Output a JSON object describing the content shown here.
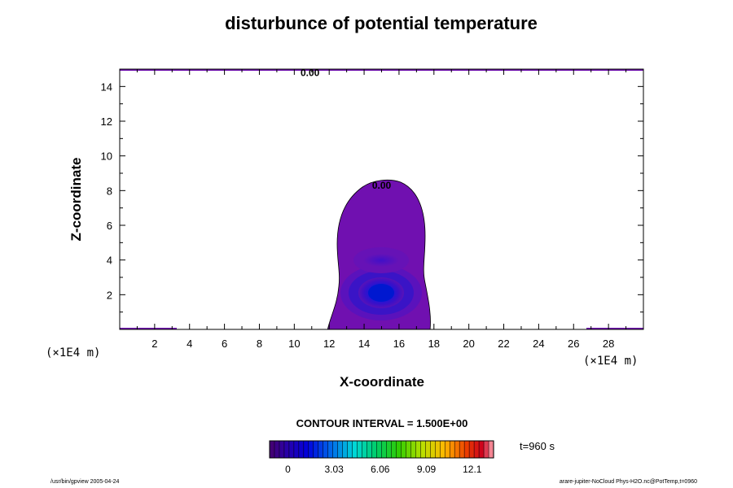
{
  "chart_data": {
    "type": "contour",
    "title": "disturbunce of potential temperature",
    "xlabel": "X-coordinate",
    "ylabel": "Z-coordinate",
    "x_scale_label": "(×1E4 m)",
    "y_scale_label": "(×1E4 m)",
    "xlim": [
      0,
      30
    ],
    "ylim": [
      0,
      15
    ],
    "x_ticks": [
      2,
      4,
      6,
      8,
      10,
      12,
      14,
      16,
      18,
      20,
      22,
      24,
      26,
      28
    ],
    "y_ticks": [
      2,
      4,
      6,
      8,
      10,
      12,
      14
    ],
    "contour_labels": [
      {
        "text": "0.00",
        "x": 10.9,
        "z": 14.8
      },
      {
        "text": "0.00",
        "x": 15.0,
        "z": 8.3
      }
    ],
    "contour_interval": "CONTOUR INTERVAL = 1.500E+00",
    "colorbar": {
      "tick_labels": [
        "0",
        "3.03",
        "6.06",
        "9.09",
        "12.1"
      ],
      "tick_values": [
        0,
        3.03,
        6.06,
        9.09,
        12.1
      ],
      "range": [
        -1.2,
        13.5
      ]
    },
    "time_label": "t=960 s",
    "colors": {
      "outer_fill": "#7010b0",
      "core_fill": "#0018d0",
      "contour_line": "#000000"
    }
  },
  "footer": {
    "left": "/usr/bin/gpview 2005-04-24",
    "right": "arare-jupiter-NoCloud Phys-H2O.nc@PotTemp,t=0960"
  }
}
